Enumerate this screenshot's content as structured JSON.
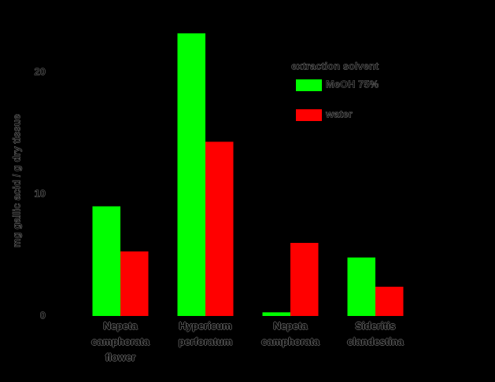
{
  "chart_data": {
    "type": "bar",
    "y_label": "mg gallic acid / g dry tissue",
    "categories": [
      "Nepeta camphorata flower",
      "Hypericum perforatum",
      "Nepeta camphorata",
      "Sideritis clandestina"
    ],
    "series": [
      {
        "name": "MeOH 75%",
        "color": "#00ff00",
        "values": [
          9.0,
          23.2,
          0.3,
          4.8
        ]
      },
      {
        "name": "water",
        "color": "#ff0000",
        "values": [
          5.3,
          14.3,
          6.0,
          2.4
        ]
      }
    ],
    "ylim": [
      0,
      25
    ],
    "yticks": [
      0,
      10,
      20
    ],
    "legend_title": "extraction solvent",
    "legend_position": "upper right",
    "grid": false
  }
}
